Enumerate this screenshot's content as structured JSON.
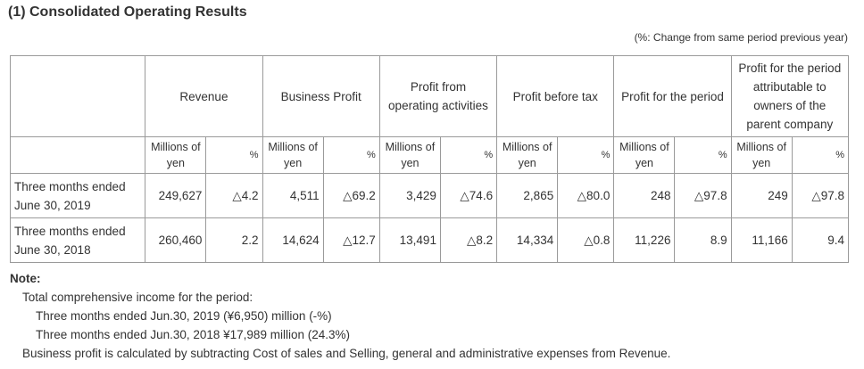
{
  "title": "(1) Consolidated Operating Results",
  "unit_note": "(%: Change from same period previous year)",
  "columns": [
    {
      "name": "revenue",
      "header": "Revenue",
      "unit": "Millions of yen",
      "pct": "%"
    },
    {
      "name": "business-profit",
      "header": "Business Profit",
      "unit": "Millions of yen",
      "pct": "%"
    },
    {
      "name": "profit-from-operating-activities",
      "header": "Profit from operating activities",
      "unit": "Millions of yen",
      "pct": "%"
    },
    {
      "name": "profit-before-tax",
      "header": "Profit before tax",
      "unit": "Millions of yen",
      "pct": "%"
    },
    {
      "name": "profit-for-the-period",
      "header": "Profit for the period",
      "unit": "Millions of yen",
      "pct": "%"
    },
    {
      "name": "profit-attributable-to-owners",
      "header": "Profit for the period attributable to owners of the parent company",
      "unit": "Millions of yen",
      "pct": "%"
    }
  ],
  "rows": [
    {
      "label": "Three months ended June 30, 2019",
      "cells": [
        {
          "value": "249,627",
          "pct": "△4.2"
        },
        {
          "value": "4,511",
          "pct": "△69.2"
        },
        {
          "value": "3,429",
          "pct": "△74.6"
        },
        {
          "value": "2,865",
          "pct": "△80.0"
        },
        {
          "value": "248",
          "pct": "△97.8"
        },
        {
          "value": "249",
          "pct": "△97.8"
        }
      ]
    },
    {
      "label": "Three months ended June 30, 2018",
      "cells": [
        {
          "value": "260,460",
          "pct": "2.2"
        },
        {
          "value": "14,624",
          "pct": "△12.7"
        },
        {
          "value": "13,491",
          "pct": "△8.2"
        },
        {
          "value": "14,334",
          "pct": "△0.8"
        },
        {
          "value": "11,226",
          "pct": "8.9"
        },
        {
          "value": "11,166",
          "pct": "9.4"
        }
      ]
    }
  ],
  "notes": {
    "heading": "Note:",
    "line1": "Total comprehensive income for the period:",
    "line2": "Three months ended Jun.30, 2019 (¥6,950) million (-%)",
    "line3": "Three months ended Jun.30, 2018 ¥17,989 million (24.3%)",
    "line4": "Business profit is calculated by subtracting Cost of sales and Selling, general and administrative expenses from Revenue."
  }
}
